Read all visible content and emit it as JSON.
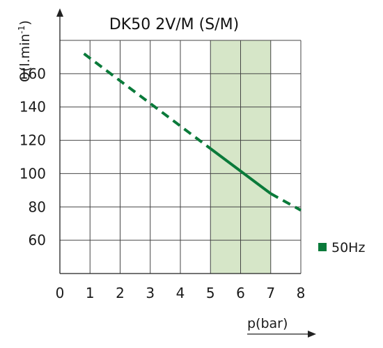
{
  "chart_data": {
    "type": "line",
    "title": "DK50 2V/M (S/M)",
    "xlabel": "p(bar)",
    "ylabel": {
      "main": "Q(l.min",
      "superscript": "-1",
      "close": ")"
    },
    "xlim": [
      0,
      8
    ],
    "ylim": [
      40,
      180
    ],
    "x_ticks": [
      0,
      1,
      2,
      3,
      4,
      5,
      6,
      7,
      8
    ],
    "y_ticks": [
      60,
      80,
      100,
      120,
      140,
      160
    ],
    "grid": true,
    "legend_placement": "right",
    "highlight_band": {
      "x_range": [
        5,
        7
      ],
      "color": "#d6e6c8"
    },
    "series": [
      {
        "name": "50Hz",
        "color": "#0a7a3a",
        "x": [
          0.8,
          5,
          7,
          8
        ],
        "y": [
          172,
          115,
          88,
          78
        ],
        "styles": [
          "dashed",
          "solid",
          "dashed"
        ]
      }
    ],
    "axis_color": "#222222",
    "grid_color": "#444444"
  }
}
